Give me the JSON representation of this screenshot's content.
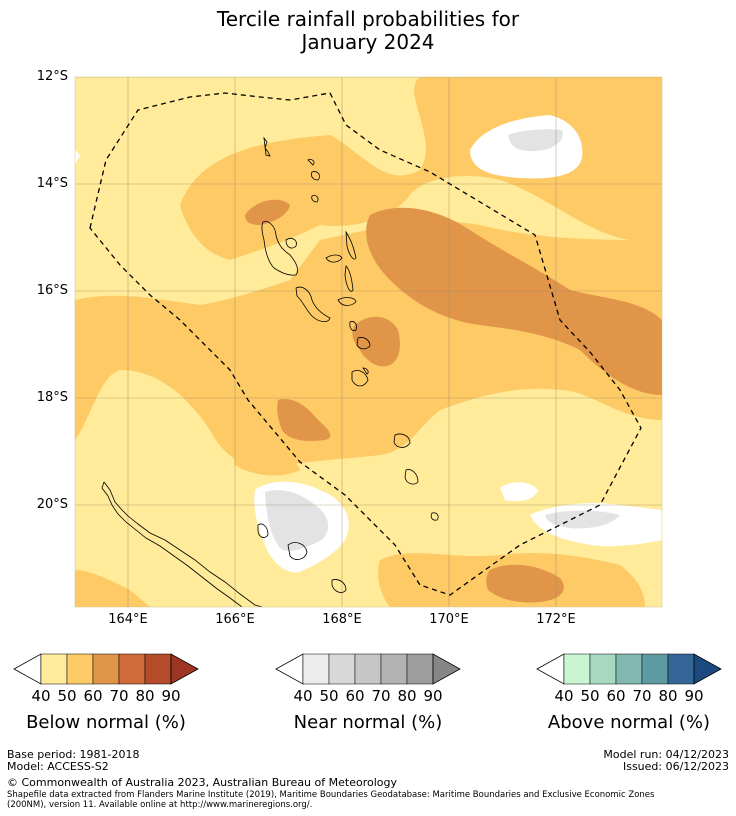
{
  "title": {
    "line1": "Tercile rainfall probabilities for",
    "line2": "January 2024"
  },
  "map": {
    "lat_labels": [
      "12°S",
      "14°S",
      "16°S",
      "18°S",
      "20°S"
    ],
    "lon_labels": [
      "164°E",
      "166°E",
      "168°E",
      "170°E",
      "172°E"
    ],
    "colors": {
      "below_40": "#ffeb99",
      "below_50": "#fdca65",
      "below_60": "#e19549",
      "near_40": "#e3e3e3",
      "land_outline": "#000000",
      "grid": "#9a8a6a",
      "eez": "#000000"
    }
  },
  "colorbars": [
    {
      "label": "Below normal (%)",
      "ticks": [
        "40",
        "50",
        "60",
        "70",
        "80",
        "90"
      ],
      "colors": [
        "#ffffff",
        "#ffeb99",
        "#fdca65",
        "#e19549",
        "#d06a38",
        "#b44b2a",
        "#9c3522"
      ]
    },
    {
      "label": "Near normal (%)",
      "ticks": [
        "40",
        "50",
        "60",
        "70",
        "80",
        "90"
      ],
      "colors": [
        "#ffffff",
        "#ececec",
        "#d8d8d8",
        "#c6c6c6",
        "#b3b3b3",
        "#9d9d9d",
        "#868686"
      ]
    },
    {
      "label": "Above normal (%)",
      "ticks": [
        "40",
        "50",
        "60",
        "70",
        "80",
        "90"
      ],
      "colors": [
        "#ffffff",
        "#c9f5d3",
        "#a6d8c2",
        "#82b8b0",
        "#5e9aa1",
        "#346798",
        "#1c4a80"
      ]
    }
  ],
  "footer": {
    "base_period": "Base period: 1981-2018",
    "model": "Model: ACCESS-S2",
    "model_run": "Model run: 04/12/2023",
    "issued": "Issued: 06/12/2023",
    "copyright": "© Commonwealth of Australia 2023, Australian Bureau of Meteorology",
    "shapefile_1": "Shapefile data extracted from Flanders Marine Institute (2019), Maritime Boundaries Geodatabase: Maritime Boundaries and Exclusive Economic Zones",
    "shapefile_2": "(200NM), version 11. Available online at http://www.marineregions.org/."
  }
}
